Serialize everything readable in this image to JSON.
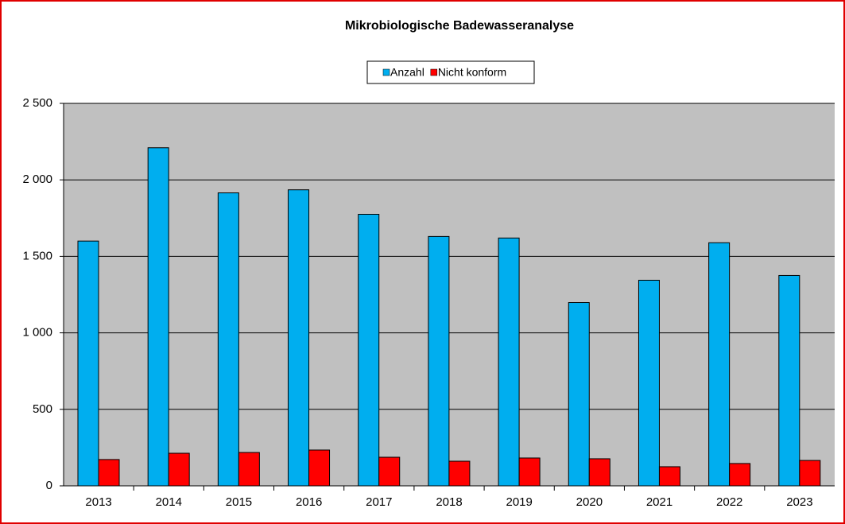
{
  "chart_data": {
    "type": "bar",
    "title": "Mikrobiologische Badewasseranalyse",
    "categories": [
      "2013",
      "2014",
      "2015",
      "2016",
      "2017",
      "2018",
      "2019",
      "2020",
      "2021",
      "2022",
      "2023"
    ],
    "series": [
      {
        "name": "Anzahl",
        "color": "#00aeef",
        "values": [
          1600,
          2210,
          1915,
          1935,
          1775,
          1630,
          1620,
          1198,
          1344,
          1589,
          1375
        ]
      },
      {
        "name": "Nicht konform",
        "color": "#ff0000",
        "values": [
          172,
          213,
          218,
          234,
          187,
          161,
          182,
          177,
          125,
          146,
          166
        ]
      }
    ],
    "ylim": [
      0,
      2500
    ],
    "yticks": [
      0,
      500,
      {
        "value": 1000,
        "label": "1 000"
      },
      {
        "value": 1500,
        "label": "1 500"
      },
      {
        "value": 2000,
        "label": "2 000"
      },
      {
        "value": 2500,
        "label": "2 500"
      }
    ],
    "grid": true,
    "legend": "top"
  }
}
